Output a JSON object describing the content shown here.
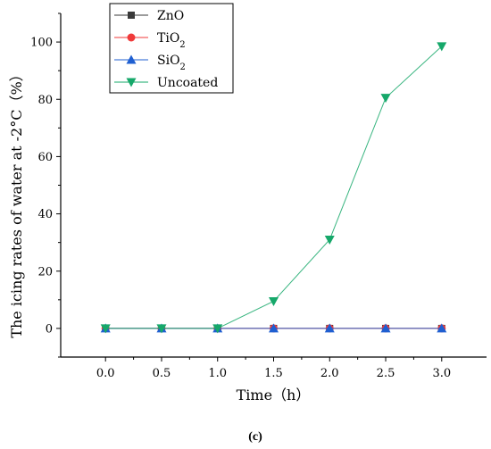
{
  "chart_data": {
    "type": "line",
    "x": [
      0.0,
      0.5,
      1.0,
      1.5,
      2.0,
      2.5,
      3.0
    ],
    "x_tick_labels": [
      "0.0",
      "0.5",
      "1.0",
      "1.5",
      "2.0",
      "2.5",
      "3.0"
    ],
    "y_ticks": [
      0,
      20,
      40,
      60,
      80,
      100
    ],
    "y_tick_labels": [
      "0",
      "20",
      "40",
      "60",
      "80",
      "100"
    ],
    "xlim": [
      -0.4,
      3.4
    ],
    "ylim": [
      -10,
      110
    ],
    "xlabel": "Time（h）",
    "ylabel": "The icing rates of water at -2°C（%）",
    "panel_label": "(c)",
    "legend_position": "top-left",
    "grid": false,
    "series": [
      {
        "name": "ZnO",
        "label_main": "ZnO",
        "label_sub": "",
        "marker": "square",
        "color": "#3a3a3a",
        "values": [
          0,
          0,
          0,
          0,
          0,
          0,
          0
        ]
      },
      {
        "name": "TiO2",
        "label_main": "TiO",
        "label_sub": "2",
        "marker": "circle",
        "color": "#f03a3a",
        "values": [
          0,
          0,
          0,
          0,
          0,
          0,
          0
        ]
      },
      {
        "name": "SiO2",
        "label_main": "SiO",
        "label_sub": "2",
        "marker": "triangle-up",
        "color": "#1f5fd1",
        "values": [
          0,
          0,
          0,
          0,
          0,
          0,
          0
        ]
      },
      {
        "name": "Uncoated",
        "label_main": "Uncoated",
        "label_sub": "",
        "marker": "triangle-down",
        "color": "#16a86a",
        "values": [
          0,
          0,
          0,
          9.5,
          31,
          80.5,
          98.5
        ]
      }
    ]
  }
}
